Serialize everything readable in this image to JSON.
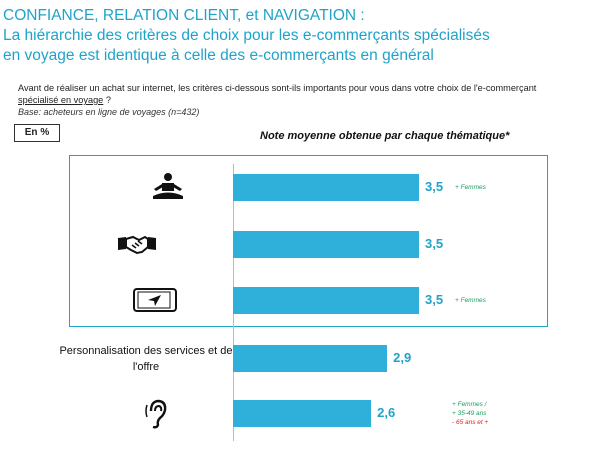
{
  "title_line1": "CONFIANCE, RELATION CLIENT, et NAVIGATION :",
  "title_line2": " La hiérarchie des critères de choix pour les e-commerçants spécialisés",
  "title_line3": "en voyage est identique à celle des e-commerçants en général",
  "question_part1": "Avant de réaliser un achat sur internet, les critères ci-dessous sont-ils importants pour vous dans votre choix de l'e-commerçant",
  "question_underlined": "spécialisé en voyage",
  "question_end": " ?",
  "base": "Base: acheteurs en ligne de voyages (n=432)",
  "unit_label": "En %",
  "chart_data": {
    "type": "bar",
    "orientation": "horizontal",
    "title": "Note moyenne obtenue par chaque thématique*",
    "categories": [
      "Confiance",
      "Relation client",
      "Navigation",
      "Personnalisation des services et de l'offre",
      "Ecoute client"
    ],
    "category_label_lines": [
      [
        "Confiance"
      ],
      [
        "Relation client"
      ],
      [
        "Navigation"
      ],
      [
        "Personnalisation des services et de",
        "l'offre"
      ],
      [
        "Ecoute client"
      ]
    ],
    "icons": [
      "meditation-icon",
      "handshake-icon",
      "smartphone-navigation-icon",
      "",
      "ear-icon"
    ],
    "values": [
      3.5,
      3.5,
      3.5,
      2.9,
      2.6
    ],
    "value_labels": [
      "3,5",
      "3,5",
      "3,5",
      "2,9",
      "2,6"
    ],
    "notes": [
      [
        {
          "text": "+ Femmes",
          "color": "#1a9e5a"
        }
      ],
      [],
      [
        {
          "text": "+ Femmes",
          "color": "#1a9e5a"
        }
      ],
      [],
      [
        {
          "text": "+ Femmes  /",
          "color": "#1a9e5a"
        },
        {
          "text": "+ 35-49 ans",
          "color": "#1a9e5a"
        },
        {
          "text": "- 65 ans et +",
          "color": "#e02020"
        }
      ]
    ],
    "highlighted_categories": [
      "Confiance",
      "Relation client",
      "Navigation"
    ],
    "colors": {
      "bar": "#2fb0da",
      "value": "#1fa3c9",
      "highlight_box": "#1fa3c9",
      "note_positive": "#1a9e5a",
      "note_negative": "#e02020"
    }
  }
}
